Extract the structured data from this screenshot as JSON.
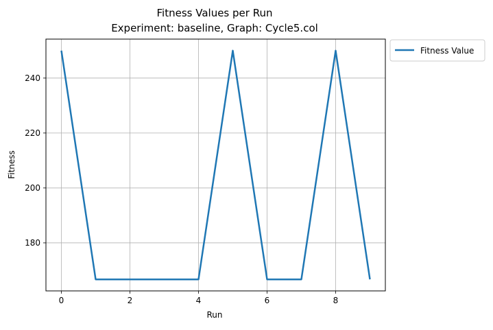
{
  "chart_data": {
    "type": "line",
    "title": "Fitness Values per Run",
    "subtitle": "Experiment: baseline, Graph: Cycle5.col",
    "xlabel": "Run",
    "ylabel": "Fitness",
    "x": [
      0,
      1,
      2,
      3,
      4,
      5,
      6,
      7,
      8,
      9
    ],
    "series": [
      {
        "name": "Fitness Value",
        "color": "#1f77b4",
        "values": [
          250,
          166.7,
          166.7,
          166.7,
          166.7,
          250,
          166.7,
          166.7,
          250,
          166.7
        ]
      }
    ],
    "xlim": [
      -0.45,
      9.45
    ],
    "ylim": [
      162.5,
      254.2
    ],
    "xticks": [
      "0",
      "2",
      "4",
      "6",
      "8"
    ],
    "yticks": [
      "180",
      "200",
      "220",
      "240"
    ],
    "grid": true,
    "legend_position": "outside upper right"
  }
}
